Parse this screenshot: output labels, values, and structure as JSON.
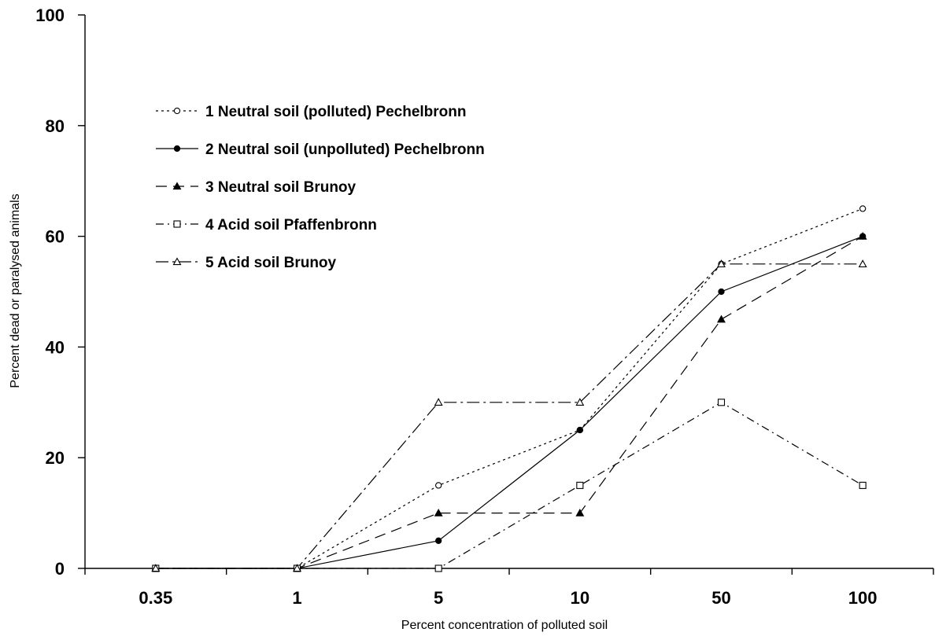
{
  "chart_data": {
    "type": "line",
    "categories": [
      "0.35",
      "1",
      "5",
      "10",
      "50",
      "100"
    ],
    "xlabel": "Percent concentration of polluted soil",
    "ylabel": "Percent dead or paralysed animals",
    "ylim": [
      0,
      100
    ],
    "yticks": [
      "0",
      "20",
      "40",
      "60",
      "80",
      "100"
    ],
    "grid": false,
    "legend_position": "top-left",
    "series": [
      {
        "name": "1 Neutral soil (polluted) Pechelbronn",
        "values": [
          0,
          0,
          15,
          25,
          55,
          65
        ],
        "marker": "circle-open",
        "dash": "dotted",
        "color": "#000000"
      },
      {
        "name": "2 Neutral soil (unpolluted) Pechelbronn",
        "values": [
          0,
          0,
          5,
          25,
          50,
          60
        ],
        "marker": "circle-filled",
        "dash": "solid",
        "color": "#000000"
      },
      {
        "name": "3 Neutral soil Brunoy",
        "values": [
          0,
          0,
          10,
          10,
          45,
          60
        ],
        "marker": "triangle-filled",
        "dash": "dashed",
        "color": "#000000"
      },
      {
        "name": "4 Acid soil Pfaffenbronn",
        "values": [
          0,
          0,
          0,
          15,
          30,
          15
        ],
        "marker": "square-open",
        "dash": "dash-dot",
        "color": "#000000"
      },
      {
        "name": "5 Acid soil Brunoy",
        "values": [
          0,
          0,
          30,
          30,
          55,
          55
        ],
        "marker": "triangle-open",
        "dash": "dash-dot-long",
        "color": "#000000"
      }
    ]
  }
}
